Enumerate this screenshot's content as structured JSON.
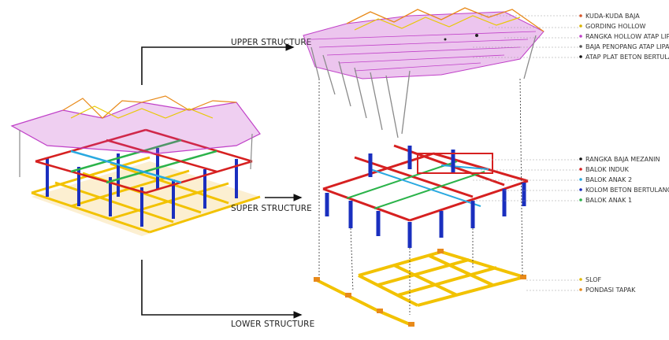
{
  "sections": {
    "upper": "UPPER STRUCTURE",
    "super": "SUPER STRUCTURE",
    "lower": "LOWER STRUCTURE"
  },
  "legend": {
    "upper": [
      {
        "label": "KUDA-KUDA BAJA",
        "color": "#d8572a"
      },
      {
        "label": "GORDING HOLLOW",
        "color": "#d9b200"
      },
      {
        "label": "RANGKA HOLLOW ATAP LIPAT",
        "color": "#c040c8"
      },
      {
        "label": "BAJA PENOPANG ATAP LIPAT",
        "color": "#555555"
      },
      {
        "label": "ATAP PLAT BETON BERTULANG",
        "color": "#111111"
      }
    ],
    "super": [
      {
        "label": "RANGKA BAJA MEZANIN",
        "color": "#111111"
      },
      {
        "label": "BALOK INDUK",
        "color": "#d62020"
      },
      {
        "label": "BALOK ANAK 2",
        "color": "#29a9e0"
      },
      {
        "label": "KOLOM BETON BERTULANG",
        "color": "#1a2fbf"
      },
      {
        "label": "BALOK ANAK 1",
        "color": "#2bb34a"
      }
    ],
    "lower": [
      {
        "label": "SLOF",
        "color": "#e0b800"
      },
      {
        "label": "PONDASI TAPAK",
        "color": "#e88a1a"
      }
    ]
  },
  "colors": {
    "roof": "#c040c8",
    "truss": "#e88a1a",
    "purlin": "#e8c800",
    "support": "#8a8a8a",
    "beam_main": "#d62020",
    "beam_2": "#29a9e0",
    "beam_1": "#2bb34a",
    "column": "#1a2fbf",
    "slof": "#f2c200",
    "footing": "#e88a1a"
  }
}
